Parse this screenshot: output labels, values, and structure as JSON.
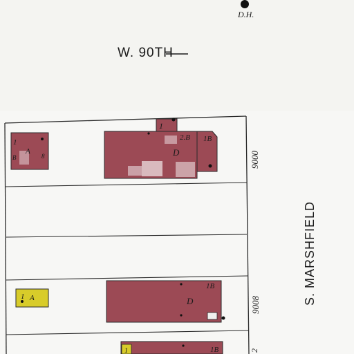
{
  "streets": {
    "north": "W. 90TH",
    "east": "S. MARSHFIELD"
  },
  "markers": {
    "top_right": "D.H."
  },
  "house_numbers": [
    "9000",
    "9008",
    "2"
  ],
  "buildings": [
    {
      "code": "D",
      "stories": [
        "1",
        "2.B",
        "1B"
      ],
      "material": "brick"
    },
    {
      "code": "A",
      "stories": [
        "1",
        "B",
        "8"
      ],
      "material": "brick"
    },
    {
      "code": "D",
      "stories": [
        "1B"
      ],
      "material": "brick"
    },
    {
      "code": "A",
      "stories": [
        "1"
      ],
      "material": "frame"
    },
    {
      "code": "",
      "stories": [
        "1",
        "1B"
      ],
      "material": "brick"
    }
  ],
  "colors": {
    "brick": "#9c4a55",
    "frame": "#d8cc2a",
    "paper": "#f7f7f5",
    "ink": "#1a1a1a"
  }
}
